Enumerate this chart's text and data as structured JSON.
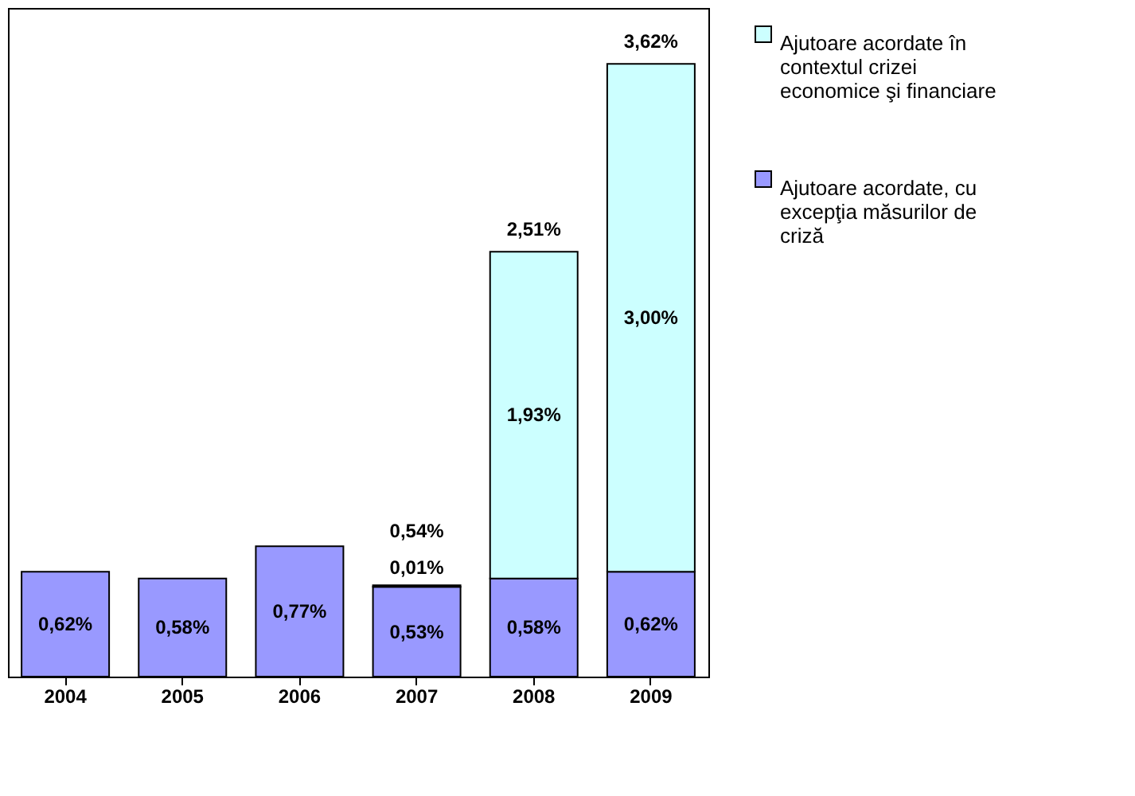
{
  "chart_data": {
    "type": "bar",
    "stacked": true,
    "categories": [
      "2004",
      "2005",
      "2006",
      "2007",
      "2008",
      "2009"
    ],
    "series": [
      {
        "name": "Ajutoare acordate, cu excepţia măsurilor de criză",
        "color": "#9999ff",
        "values": [
          0.62,
          0.58,
          0.77,
          0.53,
          0.58,
          0.62
        ],
        "value_labels": [
          "0,62%",
          "0,58%",
          "0,77%",
          "0,53%",
          "0,58%",
          "0,62%"
        ]
      },
      {
        "name": "Ajutoare acordate în contextul crizei economice şi financiare",
        "color": "#ccffff",
        "values": [
          null,
          null,
          null,
          0.01,
          1.93,
          3.0
        ],
        "value_labels": [
          null,
          null,
          null,
          "0,01%",
          "1,93%",
          "3,00%"
        ]
      }
    ],
    "totals": [
      null,
      null,
      null,
      "0,54%",
      "2,51%",
      "3,62%"
    ],
    "ylim": [
      0,
      3.95
    ],
    "legend": "right",
    "grid": false
  }
}
